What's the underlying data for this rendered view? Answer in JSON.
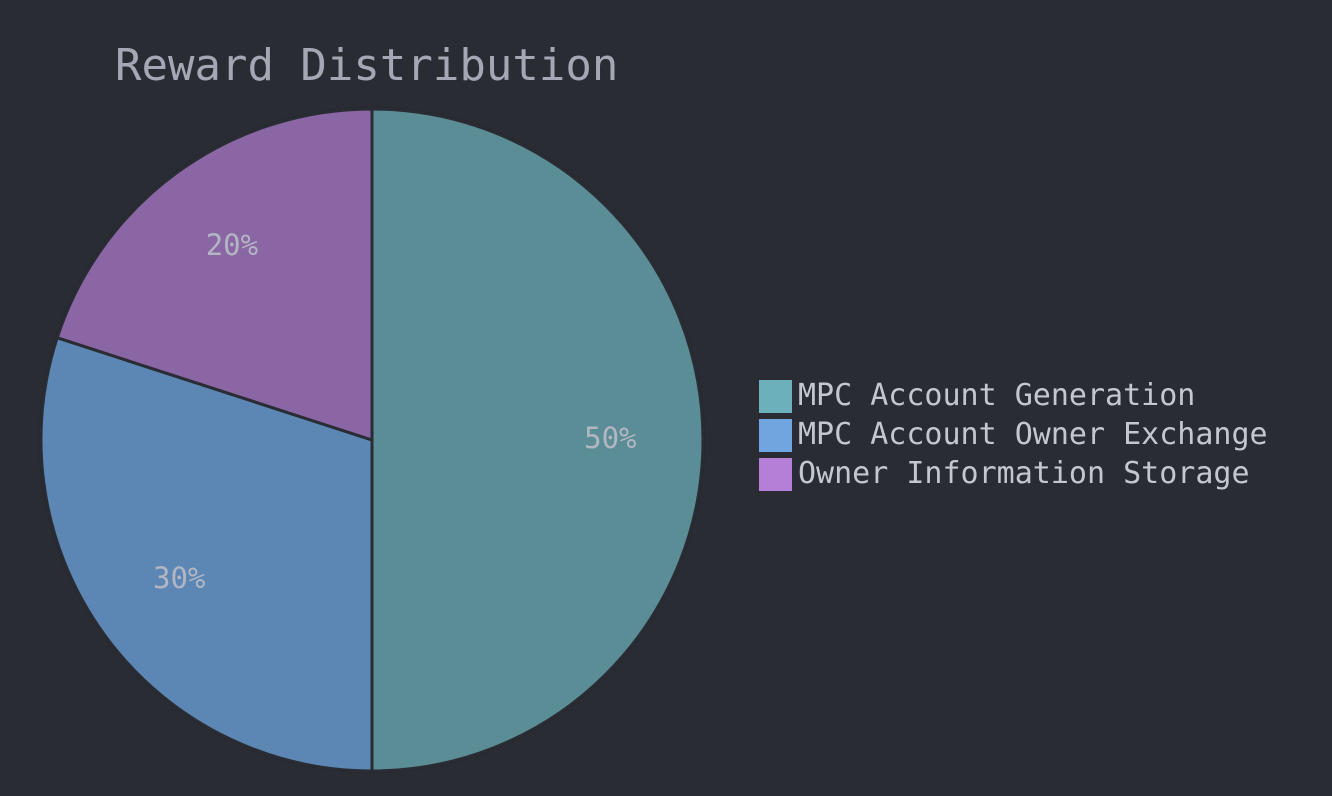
{
  "chart_data": {
    "type": "pie",
    "title": "Reward Distribution",
    "legend_position": "right",
    "start_angle": "top",
    "direction": "clockwise",
    "slices": [
      {
        "label": "MPC Account Generation",
        "value": 50,
        "display": "50%",
        "color": "#5b8d97",
        "legend_color": "#6bb0ba"
      },
      {
        "label": "MPC Account Owner Exchange",
        "value": 30,
        "display": "30%",
        "color": "#5c86b3",
        "legend_color": "#6fa6e0"
      },
      {
        "label": "Owner Information Storage",
        "value": 20,
        "display": "20%",
        "color": "#8b66a5",
        "legend_color": "#b57ed7"
      }
    ],
    "colors": {
      "background": "#2a2c34",
      "slice_border": "#2a2c34"
    }
  }
}
